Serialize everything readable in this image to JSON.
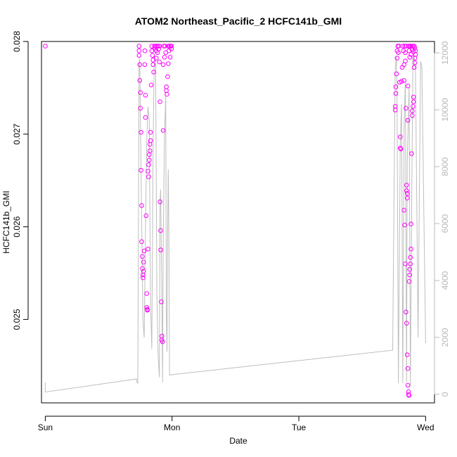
{
  "chart_data": {
    "type": "scatter",
    "title": "ATOM2 Northeast_Pacific_2 HCFC141b_GMI",
    "xlabel": "Date",
    "ylabel": "HCFC141b_GMI",
    "x_ticks": [
      "Sun",
      "Mon",
      "Tue",
      "Wed"
    ],
    "x_range": [
      -0.03,
      3.07
    ],
    "y_ticks": [
      "0.025",
      "0.026",
      "0.027",
      "0.028"
    ],
    "y_tick_values": [
      0.025,
      0.026,
      0.027,
      0.028
    ],
    "ylim": [
      0.0241,
      0.028
    ],
    "y2_ticks": [
      "0",
      "2000",
      "4000",
      "6000",
      "8000",
      "10000",
      "12000"
    ],
    "y2_tick_values": [
      0,
      2000,
      4000,
      6000,
      8000,
      10000,
      12000
    ],
    "y2lim": [
      -300,
      12400
    ],
    "grid": false,
    "colors": {
      "points": "#ff00ff",
      "altitude_line": "#bebebe",
      "right_axis": "#b8b8b8",
      "frame": "#000000"
    },
    "series": [
      {
        "marker": "open-circle",
        "axis": "left",
        "points": [
          [
            0.0,
            0.02795
          ],
          [
            0.74,
            0.02795
          ],
          [
            0.74,
            0.0279
          ],
          [
            0.74,
            0.02785
          ],
          [
            0.745,
            0.02775
          ],
          [
            0.745,
            0.02758
          ],
          [
            0.75,
            0.02745
          ],
          [
            0.75,
            0.02728
          ],
          [
            0.755,
            0.02702
          ],
          [
            0.755,
            0.02661
          ],
          [
            0.76,
            0.02623
          ],
          [
            0.76,
            0.02584
          ],
          [
            0.765,
            0.02568
          ],
          [
            0.765,
            0.02555
          ],
          [
            0.77,
            0.02548
          ],
          [
            0.77,
            0.02545
          ],
          [
            0.775,
            0.02552
          ],
          [
            0.775,
            0.02562
          ],
          [
            0.78,
            0.02574
          ],
          [
            0.785,
            0.0279
          ],
          [
            0.785,
            0.02775
          ],
          [
            0.79,
            0.02742
          ],
          [
            0.79,
            0.02718
          ],
          [
            0.795,
            0.02612
          ],
          [
            0.8,
            0.02528
          ],
          [
            0.8,
            0.02513
          ],
          [
            0.805,
            0.02511
          ],
          [
            0.805,
            0.0251
          ],
          [
            0.81,
            0.02576
          ],
          [
            0.81,
            0.0266
          ],
          [
            0.815,
            0.02654
          ],
          [
            0.815,
            0.02667
          ],
          [
            0.82,
            0.02672
          ],
          [
            0.82,
            0.02678
          ],
          [
            0.825,
            0.02682
          ],
          [
            0.825,
            0.02689
          ],
          [
            0.83,
            0.02693
          ],
          [
            0.83,
            0.02702
          ],
          [
            0.835,
            0.02753
          ],
          [
            0.84,
            0.02795
          ],
          [
            0.84,
            0.0279
          ],
          [
            0.845,
            0.02785
          ],
          [
            0.85,
            0.0278
          ],
          [
            0.85,
            0.02775
          ],
          [
            0.855,
            0.02767
          ],
          [
            0.86,
            0.02795
          ],
          [
            0.865,
            0.02793
          ],
          [
            0.87,
            0.02795
          ],
          [
            0.875,
            0.0279
          ],
          [
            0.875,
            0.02782
          ],
          [
            0.88,
            0.02795
          ],
          [
            0.885,
            0.02788
          ],
          [
            0.89,
            0.02795
          ],
          [
            0.895,
            0.02792
          ],
          [
            0.9,
            0.02795
          ],
          [
            0.9,
            0.02778
          ],
          [
            0.905,
            0.02735
          ],
          [
            0.905,
            0.02627
          ],
          [
            0.91,
            0.02596
          ],
          [
            0.91,
            0.02575
          ],
          [
            0.915,
            0.02519
          ],
          [
            0.92,
            0.02482
          ],
          [
            0.92,
            0.02478
          ],
          [
            0.925,
            0.02476
          ],
          [
            0.93,
            0.02704
          ],
          [
            0.93,
            0.02775
          ],
          [
            0.935,
            0.02795
          ],
          [
            0.94,
            0.02783
          ],
          [
            0.945,
            0.02795
          ],
          [
            0.95,
            0.02788
          ],
          [
            0.955,
            0.02751
          ],
          [
            0.955,
            0.02747
          ],
          [
            0.96,
            0.02743
          ],
          [
            0.965,
            0.02762
          ],
          [
            0.97,
            0.02776
          ],
          [
            0.97,
            0.02795
          ],
          [
            0.975,
            0.0279
          ],
          [
            0.98,
            0.02795
          ],
          [
            0.985,
            0.02783
          ],
          [
            0.99,
            0.02795
          ],
          [
            0.995,
            0.02792
          ],
          [
            0.995,
            0.02795
          ],
          [
            2.76,
            0.0273
          ],
          [
            2.76,
            0.02726
          ],
          [
            2.765,
            0.02744
          ],
          [
            2.765,
            0.02751
          ],
          [
            2.77,
            0.02765
          ],
          [
            2.775,
            0.0279
          ],
          [
            2.775,
            0.02782
          ],
          [
            2.78,
            0.02795
          ],
          [
            2.785,
            0.02788
          ],
          [
            2.79,
            0.02795
          ],
          [
            2.795,
            0.02756
          ],
          [
            2.8,
            0.02697
          ],
          [
            2.8,
            0.02685
          ],
          [
            2.805,
            0.02684
          ],
          [
            2.81,
            0.02757
          ],
          [
            2.815,
            0.02772
          ],
          [
            2.82,
            0.02795
          ],
          [
            2.825,
            0.0279
          ],
          [
            2.83,
            0.02775
          ],
          [
            2.83,
            0.02758
          ],
          [
            2.835,
            0.02795
          ],
          [
            2.84,
            0.02788
          ],
          [
            2.84,
            0.02779
          ],
          [
            2.845,
            0.02795
          ],
          [
            2.845,
            0.02728
          ],
          [
            2.85,
            0.02645
          ],
          [
            2.85,
            0.02639
          ],
          [
            2.855,
            0.02636
          ],
          [
            2.855,
            0.02631
          ],
          [
            2.86,
            0.02715
          ],
          [
            2.86,
            0.02752
          ],
          [
            2.865,
            0.02795
          ],
          [
            2.87,
            0.0279
          ],
          [
            2.875,
            0.02795
          ],
          [
            2.875,
            0.02783
          ],
          [
            2.88,
            0.02795
          ],
          [
            2.885,
            0.02786
          ],
          [
            2.89,
            0.02795
          ],
          [
            2.895,
            0.02791
          ],
          [
            2.9,
            0.02795
          ],
          [
            2.905,
            0.02789
          ],
          [
            2.91,
            0.02795
          ],
          [
            2.915,
            0.02793
          ],
          [
            2.83,
            0.02618
          ],
          [
            2.835,
            0.02602
          ],
          [
            2.84,
            0.0256
          ],
          [
            2.845,
            0.02508
          ],
          [
            2.85,
            0.02496
          ],
          [
            2.855,
            0.02462
          ],
          [
            2.86,
            0.02447
          ],
          [
            2.86,
            0.02429
          ],
          [
            2.865,
            0.02422
          ],
          [
            2.865,
            0.02419
          ],
          [
            2.87,
            0.02418
          ],
          [
            2.87,
            0.02541
          ],
          [
            2.875,
            0.02548
          ],
          [
            2.875,
            0.02554
          ],
          [
            2.88,
            0.0256
          ],
          [
            2.88,
            0.02567
          ],
          [
            2.885,
            0.02576
          ],
          [
            2.885,
            0.02603
          ],
          [
            2.89,
            0.02679
          ],
          [
            2.895,
            0.0272
          ],
          [
            2.895,
            0.02725
          ],
          [
            2.9,
            0.0273
          ],
          [
            2.905,
            0.02735
          ],
          [
            2.905,
            0.0274
          ],
          [
            2.91,
            0.02772
          ],
          [
            2.915,
            0.02777
          ],
          [
            2.915,
            0.02782
          ],
          [
            2.92,
            0.02786
          ],
          [
            2.92,
            0.0279
          ]
        ]
      },
      {
        "name": "",
        "marker": "line",
        "axis": "right",
        "points": [
          [
            0.0,
            420
          ],
          [
            0.0,
            80
          ],
          [
            0.72,
            540
          ],
          [
            0.72,
            460
          ],
          [
            0.73,
            380
          ],
          [
            0.735,
            6000
          ],
          [
            0.74,
            11600
          ],
          [
            0.745,
            11800
          ],
          [
            0.75,
            9700
          ],
          [
            0.77,
            2600
          ],
          [
            0.78,
            2000
          ],
          [
            0.79,
            5700
          ],
          [
            0.8,
            8900
          ],
          [
            0.81,
            10100
          ],
          [
            0.82,
            9600
          ],
          [
            0.83,
            3200
          ],
          [
            0.84,
            1600
          ],
          [
            0.85,
            8600
          ],
          [
            0.86,
            11900
          ],
          [
            0.87,
            11800
          ],
          [
            0.88,
            3500
          ],
          [
            0.89,
            1400
          ],
          [
            0.9,
            600
          ],
          [
            0.905,
            6800
          ],
          [
            0.91,
            7200
          ],
          [
            0.92,
            3300
          ],
          [
            0.925,
            420
          ],
          [
            0.93,
            5200
          ],
          [
            0.94,
            9000
          ],
          [
            0.95,
            10500
          ],
          [
            0.955,
            2800
          ],
          [
            0.96,
            1500
          ],
          [
            0.965,
            5500
          ],
          [
            0.97,
            7900
          ],
          [
            0.975,
            5600
          ],
          [
            0.98,
            680
          ],
          [
            2.74,
            1550
          ],
          [
            2.76,
            11400
          ],
          [
            2.77,
            11900
          ],
          [
            2.775,
            10200
          ],
          [
            2.785,
            400
          ],
          [
            2.8,
            8800
          ],
          [
            2.81,
            10200
          ],
          [
            2.82,
            400
          ],
          [
            2.83,
            9400
          ],
          [
            2.84,
            11000
          ],
          [
            2.85,
            420
          ],
          [
            2.855,
            8200
          ],
          [
            2.87,
            10800
          ],
          [
            2.88,
            300
          ],
          [
            2.89,
            6500
          ],
          [
            2.9,
            11800
          ],
          [
            2.91,
            11900
          ],
          [
            2.92,
            11300
          ],
          [
            2.94,
            2000
          ],
          [
            2.96,
            11700
          ],
          [
            2.97,
            11500
          ],
          [
            3.0,
            1800
          ]
        ]
      }
    ]
  }
}
